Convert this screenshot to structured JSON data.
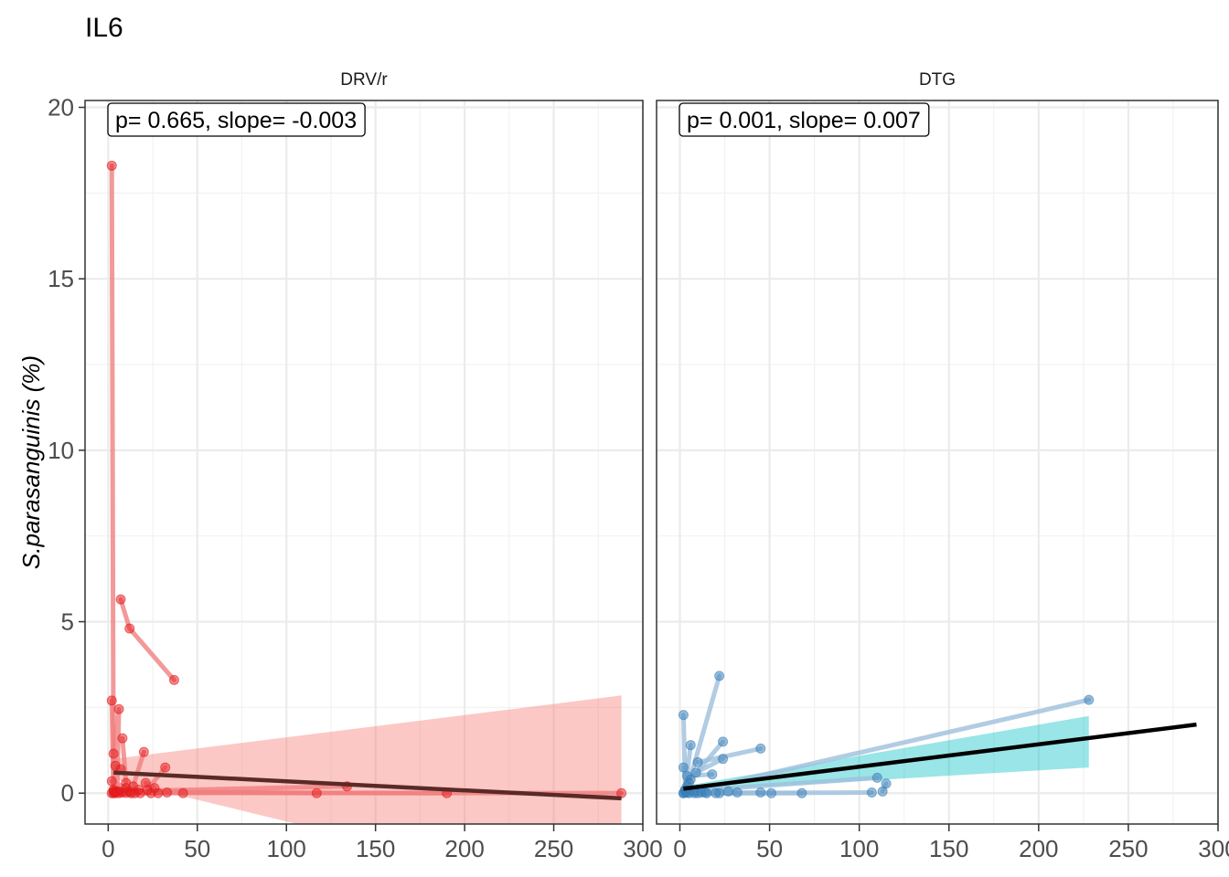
{
  "chart_data": {
    "type": "scatter",
    "title": "IL6",
    "ylabel": "S.parasanguinis (%)",
    "xlabel": "",
    "xlim": [
      -13,
      300
    ],
    "ylim": [
      -0.9,
      20.2
    ],
    "x_ticks": [
      0,
      50,
      100,
      150,
      200,
      250,
      300
    ],
    "y_ticks": [
      0,
      5,
      10,
      15,
      20
    ],
    "grid": true,
    "legend": "none",
    "panels": [
      {
        "name": "DRV/r",
        "annotation": "p= 0.665, slope= -0.003",
        "point_color": "#e41a1c",
        "line_color": "#f08080",
        "ribbon_color": "#f8766d",
        "fit_color": "#5a2a27",
        "fit": {
          "x": [
            3,
            288
          ],
          "y": [
            0.6,
            -0.15
          ]
        },
        "ribbon": {
          "x": [
            3,
            288
          ],
          "lower_start": 0.4,
          "lower_end": -3.2,
          "upper_start": 1.0,
          "upper_end": 2.85
        },
        "trajectories": [
          [
            [
              2,
              18.3
            ],
            [
              3,
              0.1
            ]
          ],
          [
            [
              2,
              2.7
            ],
            [
              3,
              0.05
            ]
          ],
          [
            [
              7,
              5.65
            ],
            [
              12,
              4.8
            ],
            [
              37,
              3.3
            ]
          ],
          [
            [
              3,
              1.15
            ],
            [
              6,
              2.45
            ],
            [
              5,
              0.05
            ]
          ],
          [
            [
              8,
              1.6
            ],
            [
              10,
              0.3
            ]
          ],
          [
            [
              4,
              0.8
            ],
            [
              7,
              0.7
            ]
          ],
          [
            [
              20,
              1.2
            ],
            [
              14,
              0.2
            ]
          ],
          [
            [
              32,
              0.75
            ],
            [
              22,
              0.1
            ]
          ],
          [
            [
              2,
              0.35
            ],
            [
              10,
              0.15
            ],
            [
              17,
              0.1
            ]
          ],
          [
            [
              21,
              0.3
            ],
            [
              26,
              0.15
            ]
          ],
          [
            [
              4,
              0.05
            ],
            [
              117,
              0.0
            ]
          ],
          [
            [
              6,
              0.05
            ],
            [
              134,
              0.2
            ]
          ],
          [
            [
              8,
              0.02
            ],
            [
              190,
              0.0
            ]
          ],
          [
            [
              10,
              0.01
            ],
            [
              288,
              0.0
            ]
          ],
          [
            [
              12,
              0.03
            ],
            [
              42,
              0.0
            ]
          ],
          [
            [
              3,
              0.0
            ],
            [
              33,
              0.02
            ]
          ],
          [
            [
              2,
              0.0
            ],
            [
              15,
              0.0
            ],
            [
              28,
              0.0
            ]
          ],
          [
            [
              4,
              0.0
            ],
            [
              18,
              0.0
            ],
            [
              24,
              0.0
            ]
          ],
          [
            [
              6,
              0.0
            ],
            [
              13,
              0.0
            ]
          ]
        ]
      },
      {
        "name": "DTG",
        "annotation": "p= 0.001, slope= 0.007",
        "point_color": "#377eb8",
        "line_color": "#9ebfdc",
        "ribbon_color": "#00bfc4",
        "fit_color": "#000000",
        "fit": {
          "x": [
            2,
            288
          ],
          "y": [
            0.13,
            2.0
          ]
        },
        "ribbon": {
          "x": [
            2,
            228
          ],
          "lower_start": 0.05,
          "lower_end": 0.75,
          "upper_start": 0.2,
          "upper_end": 2.25
        },
        "trajectories": [
          [
            [
              2,
              0.0
            ],
            [
              228,
              2.72
            ]
          ],
          [
            [
              2,
              2.28
            ],
            [
              3,
              0.1
            ]
          ],
          [
            [
              6,
              1.4
            ],
            [
              3,
              0.1
            ]
          ],
          [
            [
              22,
              3.42
            ],
            [
              5,
              0.3
            ]
          ],
          [
            [
              24,
              1.5
            ],
            [
              6,
              0.4
            ]
          ],
          [
            [
              45,
              1.3
            ],
            [
              10,
              0.9
            ]
          ],
          [
            [
              24,
              1.0
            ],
            [
              9,
              0.6
            ]
          ],
          [
            [
              18,
              0.55
            ],
            [
              4,
              0.5
            ]
          ],
          [
            [
              2,
              0.75
            ],
            [
              4,
              0.2
            ]
          ],
          [
            [
              110,
              0.45
            ],
            [
              3,
              0.05
            ]
          ],
          [
            [
              115,
              0.28
            ],
            [
              113,
              0.05
            ]
          ],
          [
            [
              107,
              0.02
            ],
            [
              10,
              0.0
            ]
          ],
          [
            [
              68,
              0.0
            ],
            [
              8,
              0.0
            ]
          ],
          [
            [
              51,
              0.0
            ],
            [
              14,
              0.02
            ]
          ],
          [
            [
              45,
              0.02
            ],
            [
              20,
              0.0
            ]
          ],
          [
            [
              32,
              0.02
            ],
            [
              15,
              0.0
            ]
          ],
          [
            [
              27,
              0.05
            ],
            [
              5,
              0.0
            ]
          ],
          [
            [
              22,
              0.0
            ],
            [
              3,
              0.02
            ]
          ],
          [
            [
              12,
              0.02
            ],
            [
              2,
              0.0
            ]
          ],
          [
            [
              8,
              0.05
            ],
            [
              4,
              0.02
            ]
          ]
        ]
      }
    ]
  }
}
